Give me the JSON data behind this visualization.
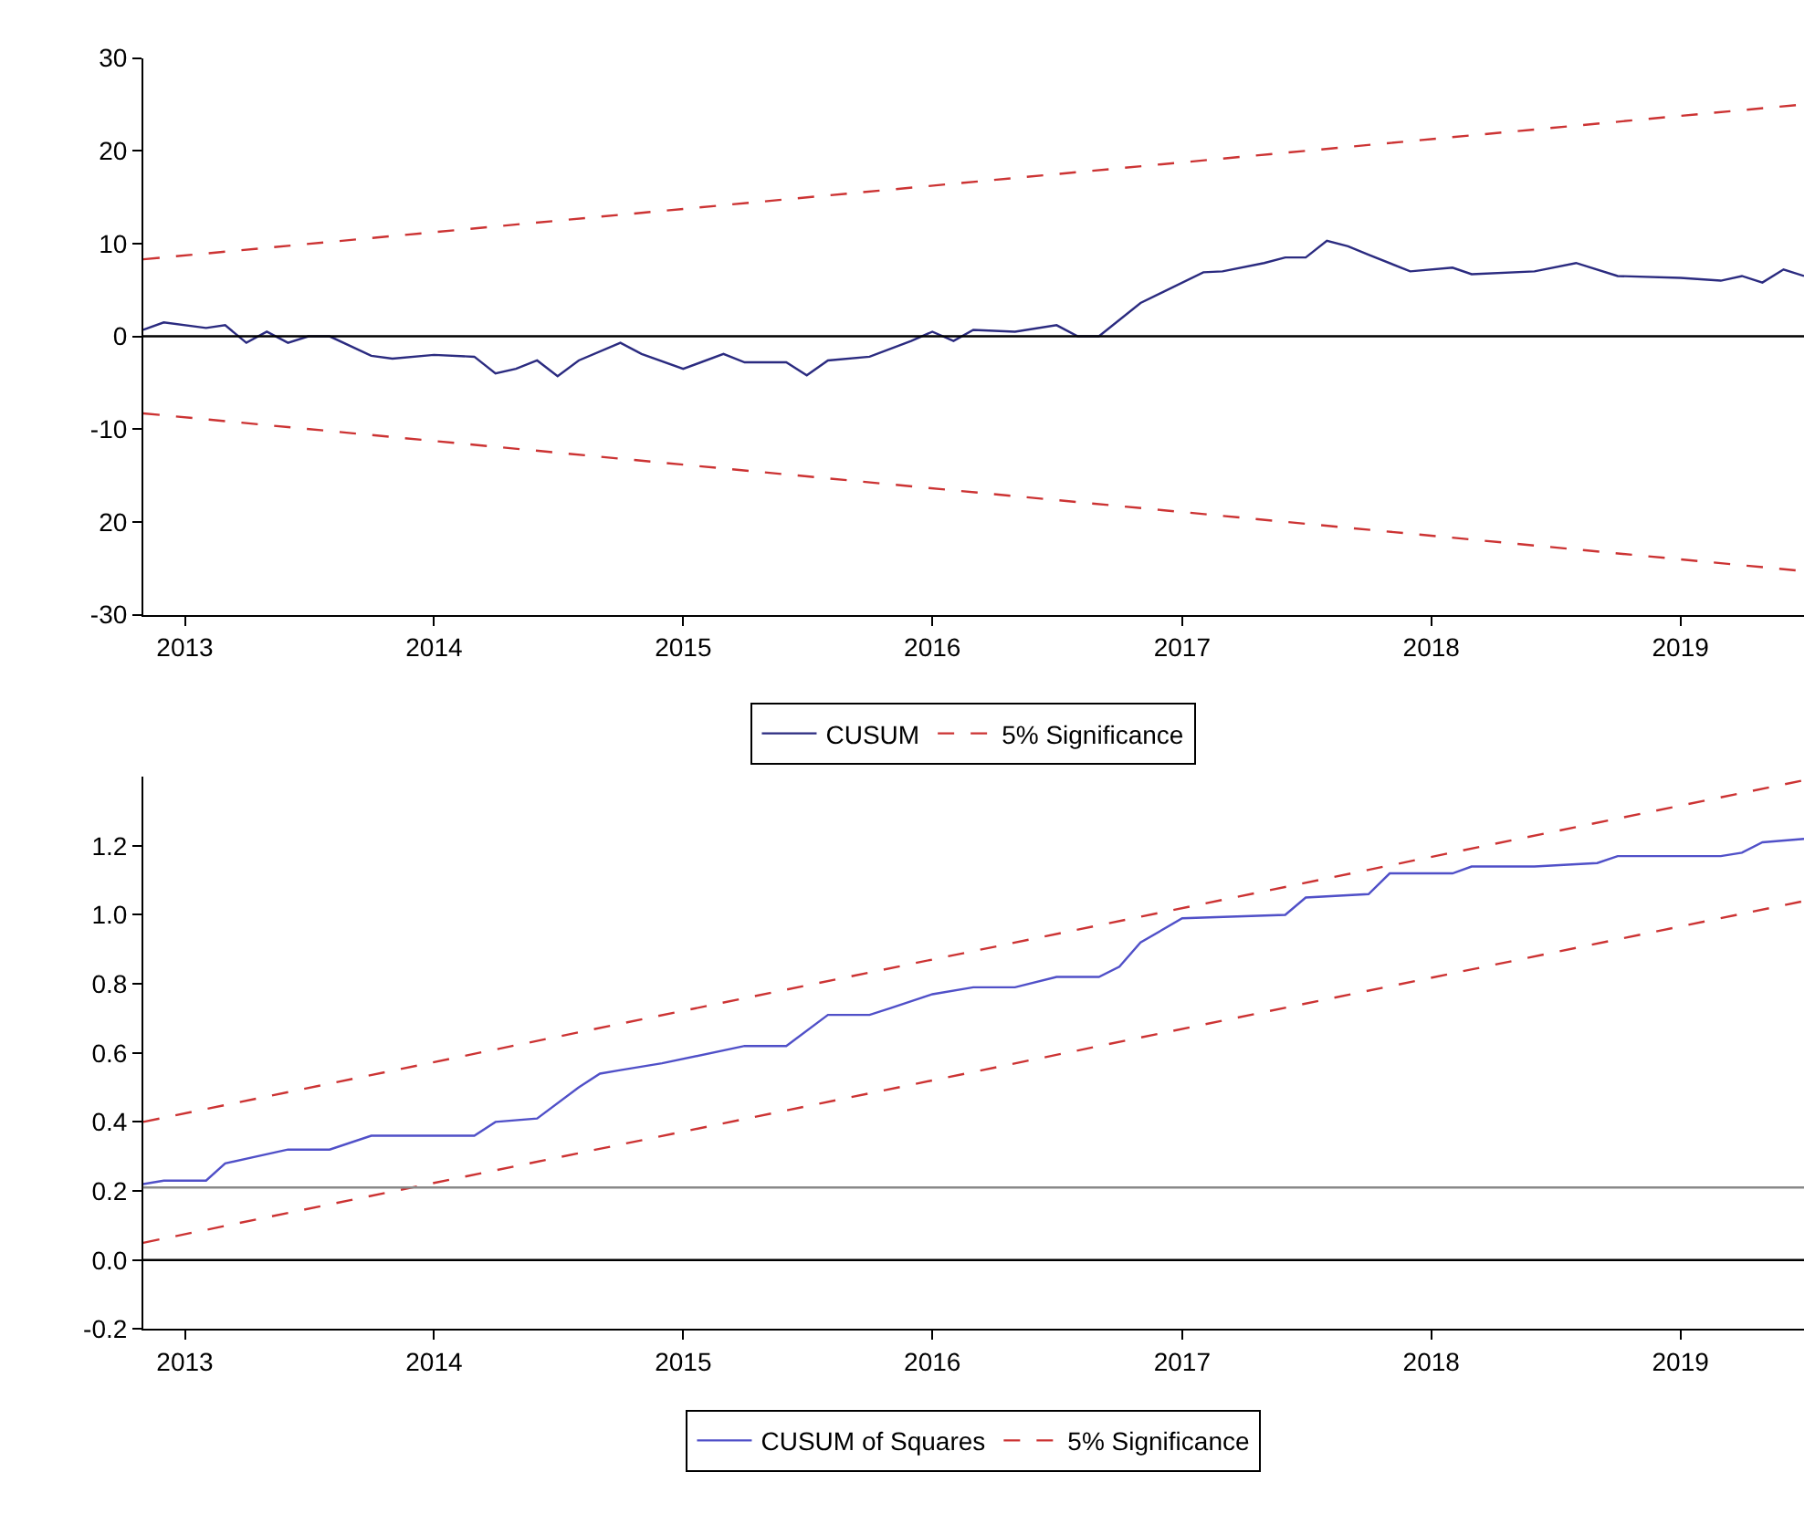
{
  "chart_data": [
    {
      "type": "line",
      "x": [
        "2012-11",
        "2012-12",
        "2013-02",
        "2013-03",
        "2013-04",
        "2013-05",
        "2013-06",
        "2013-07",
        "2013-08",
        "2013-10",
        "2013-11",
        "2014-01",
        "2014-03",
        "2014-04",
        "2014-05",
        "2014-06",
        "2014-07",
        "2014-08",
        "2014-10",
        "2014-11",
        "2015-01",
        "2015-03",
        "2015-04",
        "2015-06",
        "2015-07",
        "2015-08",
        "2015-10",
        "2015-12",
        "2016-01",
        "2016-02",
        "2016-03",
        "2016-05",
        "2016-07",
        "2016-08",
        "2016-09",
        "2016-11",
        "2017-02",
        "2017-03",
        "2017-05",
        "2017-06",
        "2017-07",
        "2017-08",
        "2017-09",
        "2017-10",
        "2017-12",
        "2018-02",
        "2018-03",
        "2018-06",
        "2018-08",
        "2018-10",
        "2019-01",
        "2019-03",
        "2019-04",
        "2019-05",
        "2019-06",
        "2019-07"
      ],
      "series": [
        {
          "name": "CUSUM",
          "color": "#2b2b80",
          "line_style": "solid",
          "values": [
            0.7,
            1.5,
            0.9,
            1.2,
            -0.7,
            0.5,
            -0.7,
            0,
            0,
            -2.1,
            -2.4,
            -2.0,
            -2.2,
            -4.0,
            -3.5,
            -2.6,
            -4.3,
            -2.6,
            -0.7,
            -1.9,
            -3.5,
            -1.9,
            -2.8,
            -2.8,
            -4.2,
            -2.6,
            -2.2,
            -0.5,
            0.5,
            -0.5,
            0.7,
            0.5,
            1.2,
            0,
            0,
            3.6,
            6.9,
            7.0,
            7.9,
            8.5,
            8.5,
            10.3,
            9.7,
            8.8,
            7.0,
            7.4,
            6.7,
            7.0,
            7.9,
            6.5,
            6.3,
            6.0,
            6.5,
            5.8,
            7.2,
            6.5
          ]
        },
        {
          "name": "5% Significance",
          "color": "#cc3333",
          "line_style": "dashed",
          "x": [
            "2012-11",
            "2019-07"
          ],
          "values": [
            8.3,
            25.0
          ]
        },
        {
          "color": "#cc3333",
          "line_style": "dashed",
          "x": [
            "2012-11",
            "2019-07"
          ],
          "values": [
            -8.3,
            -25.3
          ]
        }
      ],
      "xlim": [
        "2012-11",
        "2019-07"
      ],
      "xticks": [
        {
          "value": "2013-01",
          "label": "2013"
        },
        {
          "value": "2014-01",
          "label": "2014"
        },
        {
          "value": "2015-01",
          "label": "2015"
        },
        {
          "value": "2016-01",
          "label": "2016"
        },
        {
          "value": "2017-01",
          "label": "2017"
        },
        {
          "value": "2018-01",
          "label": "2018"
        },
        {
          "value": "2019-01",
          "label": "2019"
        }
      ],
      "ylim": [
        -30,
        30
      ],
      "yticks": [
        30,
        20,
        10,
        0,
        -10,
        {
          "value": -20,
          "label": "20"
        },
        -30
      ],
      "ref_lines": [
        {
          "axis": "y",
          "value": 0,
          "color": "#000000"
        }
      ],
      "legend": "bottom",
      "marker": "none"
    },
    {
      "type": "line",
      "x": [
        "2012-11",
        "2012-12",
        "2013-02",
        "2013-03",
        "2013-06",
        "2013-08",
        "2013-10",
        "2014-03",
        "2014-04",
        "2014-06",
        "2014-08",
        "2014-09",
        "2014-10",
        "2014-12",
        "2015-04",
        "2015-06",
        "2015-08",
        "2015-10",
        "2015-11",
        "2016-01",
        "2016-03",
        "2016-05",
        "2016-07",
        "2016-09",
        "2016-10",
        "2016-11",
        "2017-01",
        "2017-06",
        "2017-07",
        "2017-10",
        "2017-11",
        "2018-02",
        "2018-03",
        "2018-06",
        "2018-09",
        "2018-10",
        "2019-03",
        "2019-04",
        "2019-05",
        "2019-07"
      ],
      "series": [
        {
          "name": "CUSUM of Squares",
          "color": "#5050c8",
          "line_style": "solid",
          "values": [
            0.22,
            0.23,
            0.23,
            0.28,
            0.32,
            0.32,
            0.36,
            0.36,
            0.4,
            0.41,
            0.5,
            0.54,
            0.55,
            0.57,
            0.62,
            0.62,
            0.71,
            0.71,
            0.73,
            0.77,
            0.79,
            0.79,
            0.82,
            0.82,
            0.85,
            0.92,
            0.99,
            1.0,
            1.05,
            1.06,
            1.12,
            1.12,
            1.14,
            1.14,
            1.15,
            1.17,
            1.17,
            1.18,
            1.21,
            1.22
          ]
        },
        {
          "name": "5% Significance",
          "color": "#cc3333",
          "line_style": "dashed",
          "x": [
            "2012-11",
            "2019-07"
          ],
          "values": [
            0.4,
            1.39
          ]
        },
        {
          "color": "#cc3333",
          "line_style": "dashed",
          "x": [
            "2012-11",
            "2019-07"
          ],
          "values": [
            0.05,
            1.04
          ]
        }
      ],
      "xlim": [
        "2012-11",
        "2019-07"
      ],
      "xticks": [
        {
          "value": "2013-01",
          "label": "2013"
        },
        {
          "value": "2014-01",
          "label": "2014"
        },
        {
          "value": "2015-01",
          "label": "2015"
        },
        {
          "value": "2016-01",
          "label": "2016"
        },
        {
          "value": "2017-01",
          "label": "2017"
        },
        {
          "value": "2018-01",
          "label": "2018"
        },
        {
          "value": "2019-01",
          "label": "2019"
        }
      ],
      "ylim": [
        -0.2,
        1.4
      ],
      "yticks": [
        {
          "value": 1.2,
          "label": "1.2"
        },
        {
          "value": 1.0,
          "label": "1.0"
        },
        {
          "value": 0.8,
          "label": "0.8"
        },
        {
          "value": 0.6,
          "label": "0.6"
        },
        {
          "value": 0.4,
          "label": "0.4"
        },
        {
          "value": 0.2,
          "label": "0.2"
        },
        {
          "value": 0.0,
          "label": "0.0"
        },
        {
          "value": -0.2,
          "label": "-0.2"
        }
      ],
      "ref_lines": [
        {
          "axis": "y",
          "value": 0,
          "color": "#000000"
        },
        {
          "axis": "y",
          "value": 0.21,
          "color": "#888888"
        }
      ],
      "legend": "bottom",
      "marker": "none"
    }
  ]
}
